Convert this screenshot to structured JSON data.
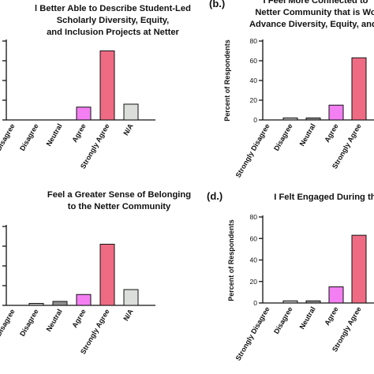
{
  "colors": {
    "strongly_disagree": "#ffffff",
    "disagree": "#bdbdbd",
    "neutral": "#8f8f8f",
    "agree": "#f37ff2",
    "strongly_agree": "#ee6b83",
    "na": "#dcdedc",
    "axis": "#111111"
  },
  "chart_data": [
    {
      "type": "bar",
      "panel_label": "",
      "title": [
        "l Better Able to Describe Student-Led",
        "Scholarly Diversity, Equity,",
        "and Inclusion Projects at Netter"
      ],
      "ylabel": "",
      "ylim": [
        0,
        80
      ],
      "yticks": [],
      "categories": [
        "Disagree",
        "Disagree",
        "Neutral",
        "Agree",
        "Strongly Agree",
        "N/A"
      ],
      "values": [
        0,
        0,
        0,
        13,
        70,
        16
      ]
    },
    {
      "type": "bar",
      "panel_label": "(b.)",
      "title": [
        "I Feel More Connected to",
        "Netter Community that is Wo",
        "Advance Diversity, Equity, and I"
      ],
      "ylabel": "Percent of Respondents",
      "ylim": [
        0,
        80
      ],
      "yticks": [
        "0",
        "20",
        "40",
        "60",
        "80"
      ],
      "categories": [
        "Strongly Disagree",
        "Disagree",
        "Neutral",
        "Agree",
        "Strongly Agree",
        "N/A"
      ],
      "values": [
        0,
        2,
        2,
        15,
        63,
        15
      ]
    },
    {
      "type": "bar",
      "panel_label": "",
      "title": [
        "Feel a Greater Sense of Belonging",
        "to the Netter Community"
      ],
      "ylabel": "",
      "ylim": [
        0,
        80
      ],
      "yticks": [],
      "categories": [
        "Disagree",
        "Disagree",
        "Neutral",
        "Agree",
        "Strongly Agree",
        "N/A"
      ],
      "values": [
        0,
        2,
        4,
        11,
        62,
        16
      ]
    },
    {
      "type": "bar",
      "panel_label": "(d.)",
      "title": [
        "I Felt Engaged During the"
      ],
      "ylabel": "Percent of Respondents",
      "ylim": [
        0,
        80
      ],
      "yticks": [
        "0",
        "20",
        "40",
        "60",
        "80"
      ],
      "categories": [
        "Strongly Disagree",
        "Disagree",
        "Neutral",
        "Agree",
        "Strongly Agree"
      ],
      "values": [
        0,
        2,
        2,
        15,
        63
      ]
    }
  ]
}
